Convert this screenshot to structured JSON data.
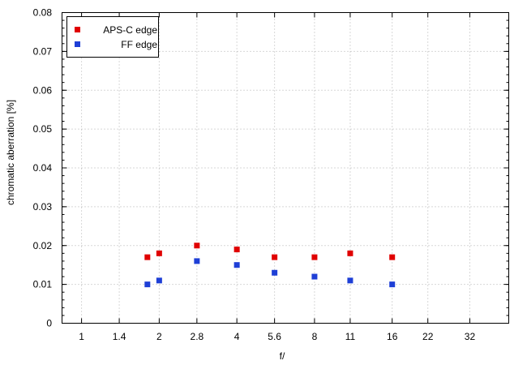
{
  "chart_data": {
    "type": "scatter",
    "title": "",
    "xlabel": "f/",
    "ylabel": "chromatic  aberration [%]",
    "x_axis_scale": "log2",
    "x_ticks": [
      "1",
      "1.4",
      "2",
      "2.8",
      "4",
      "5.6",
      "8",
      "11",
      "16",
      "22",
      "32"
    ],
    "xlim": [
      0.84,
      45.3
    ],
    "ylim": [
      0,
      0.08
    ],
    "y_ticks": [
      "0",
      "0.01",
      "0.02",
      "0.03",
      "0.04",
      "0.05",
      "0.06",
      "0.07",
      "0.08"
    ],
    "grid": true,
    "legend_position": "top-left",
    "series": [
      {
        "name": "APS-C edge",
        "color": "#e00000",
        "x": [
          1.8,
          2.0,
          2.8,
          4.0,
          5.6,
          8.0,
          11.0,
          16.0
        ],
        "y": [
          0.017,
          0.018,
          0.02,
          0.019,
          0.017,
          0.017,
          0.018,
          0.017
        ]
      },
      {
        "name": "FF edge",
        "color": "#1e3fd6",
        "x": [
          1.8,
          2.0,
          2.8,
          4.0,
          5.6,
          8.0,
          11.0,
          16.0
        ],
        "y": [
          0.01,
          0.011,
          0.016,
          0.015,
          0.013,
          0.012,
          0.011,
          0.01
        ]
      }
    ]
  }
}
